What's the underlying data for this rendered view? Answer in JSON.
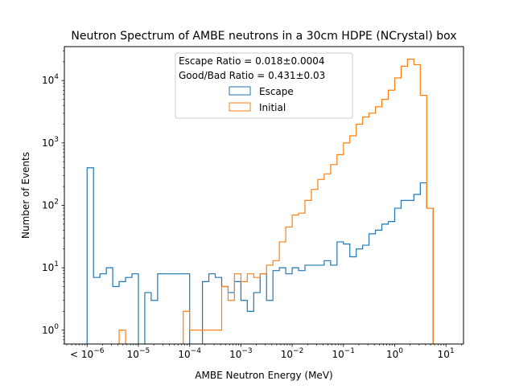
{
  "chart_data": {
    "type": "histogram-step",
    "title": "Neutron Spectrum of AMBE neutrons in a 30cm HDPE (NCrystal) box",
    "xlabel": "AMBE Neutron Energy (MeV)",
    "ylabel": "Number of Events",
    "xscale": "log",
    "yscale": "log",
    "xlim": [
      3.6e-07,
      22
    ],
    "ylim": [
      0.6,
      35000
    ],
    "grid": false,
    "x_ticks": [
      {
        "value": 1e-06,
        "label": "< 10",
        "exp": "−6"
      },
      {
        "value": 1e-05,
        "label": "10",
        "exp": "−5"
      },
      {
        "value": 0.0001,
        "label": "10",
        "exp": "−4"
      },
      {
        "value": 0.001,
        "label": "10",
        "exp": "−3"
      },
      {
        "value": 0.01,
        "label": "10",
        "exp": "−2"
      },
      {
        "value": 0.1,
        "label": "10",
        "exp": "−1"
      },
      {
        "value": 1,
        "label": "10",
        "exp": "0"
      },
      {
        "value": 10,
        "label": "10",
        "exp": "1"
      }
    ],
    "y_ticks": [
      {
        "value": 1,
        "label": "10",
        "exp": "0"
      },
      {
        "value": 10,
        "label": "10",
        "exp": "1"
      },
      {
        "value": 100,
        "label": "10",
        "exp": "2"
      },
      {
        "value": 1000,
        "label": "10",
        "exp": "3"
      },
      {
        "value": 10000,
        "label": "10",
        "exp": "4"
      }
    ],
    "legend": {
      "placement": "upper center",
      "lines": [
        "Escape Ratio = 0.018±0.0004",
        "Good/Bad Ratio = 0.431±0.03"
      ],
      "entries": [
        {
          "label": "Escape",
          "color": "#1f77b4"
        },
        {
          "label": "Initial",
          "color": "#ff7f0e"
        }
      ]
    },
    "bin_edges_log10_start": -6,
    "bin_edges_log10_end": 1,
    "bin_count": 56,
    "series": [
      {
        "name": "Escape",
        "color": "#1f77b4",
        "values": [
          400,
          7,
          8,
          10,
          5,
          6,
          7,
          8,
          0.5,
          4,
          3,
          8,
          8,
          8,
          8,
          8,
          0.5,
          0.5,
          6,
          8,
          7,
          5,
          4,
          6,
          3,
          2,
          4,
          8,
          3,
          9,
          10,
          8,
          10,
          9,
          11,
          11,
          11,
          13,
          11,
          26,
          24,
          15,
          20,
          23,
          35,
          40,
          50,
          55,
          90,
          120,
          120,
          150,
          230,
          90,
          0.5,
          0.5
        ],
        "values_note": "0.5 = empty bin (drawn at axis bottom)"
      },
      {
        "name": "Initial",
        "color": "#ff7f0e",
        "values": [
          0.5,
          0.5,
          0.5,
          0.5,
          0.5,
          1,
          0.5,
          0.5,
          0.5,
          0.5,
          0.5,
          0.5,
          0.5,
          0.5,
          0.5,
          2,
          1,
          1,
          1,
          1,
          1,
          5,
          3,
          8,
          6,
          8,
          7,
          8,
          11,
          13,
          26,
          45,
          70,
          75,
          120,
          180,
          260,
          320,
          450,
          650,
          1000,
          1300,
          2000,
          2600,
          3000,
          3800,
          5000,
          7000,
          11000,
          17000,
          22000,
          18000,
          5800,
          90,
          0.5,
          0.5
        ]
      }
    ]
  }
}
